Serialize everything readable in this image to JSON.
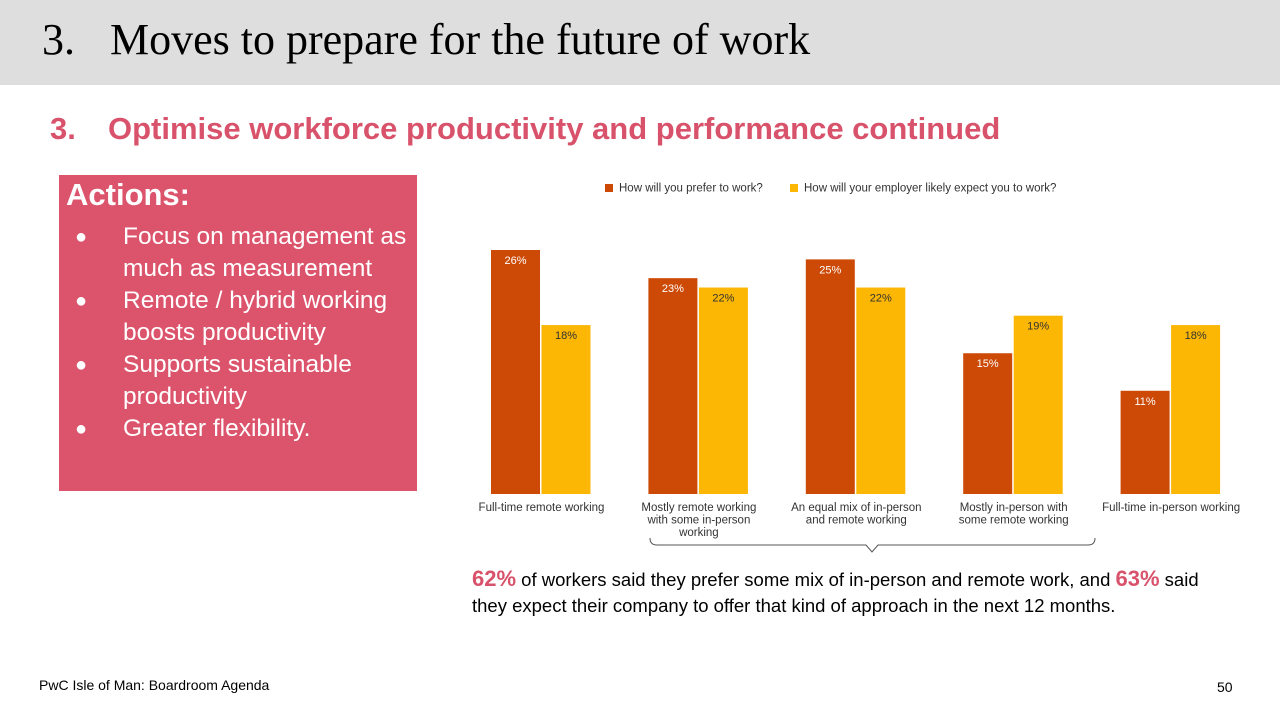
{
  "header": {
    "number": "3.",
    "title": "Moves to prepare for the future of work"
  },
  "subtitle": {
    "number": "3.",
    "text": "Optimise workforce productivity and performance continued"
  },
  "actions": {
    "heading": "Actions:",
    "bullet": "●",
    "items": [
      "Focus on management as much as measurement",
      "Remote / hybrid working boosts productivity",
      "Supports sustainable productivity",
      "Greater flexibility."
    ]
  },
  "chart_data": {
    "type": "bar",
    "categories": [
      [
        "Full-time remote working"
      ],
      [
        "Mostly remote working",
        "with some in-person",
        "working"
      ],
      [
        "An equal mix of in-person",
        "and remote working"
      ],
      [
        "Mostly in-person with",
        "some remote working"
      ],
      [
        "Full-time in-person working"
      ]
    ],
    "series": [
      {
        "name": "How will you prefer to work?",
        "color": "#cc4a06",
        "values": [
          26,
          23,
          25,
          15,
          11
        ],
        "labels": [
          "26%",
          "23%",
          "25%",
          "15%",
          "11%"
        ]
      },
      {
        "name": "How will your employer likely expect you to work?",
        "color": "#fcb604",
        "values": [
          18,
          22,
          22,
          19,
          18
        ],
        "labels": [
          "18%",
          "22%",
          "22%",
          "19%",
          "18%"
        ]
      }
    ],
    "ylim": [
      0,
      26
    ],
    "legend": "top",
    "grid": false
  },
  "note": {
    "stat1": "62%",
    "text1": " of workers said they prefer some mix of in-person and remote work, and ",
    "stat2": "63%",
    "text2": " said they expect their company to offer that kind of approach in the next 12 months."
  },
  "footer": {
    "source": "PwC Isle of Man: Boardroom Agenda",
    "page": "50"
  }
}
